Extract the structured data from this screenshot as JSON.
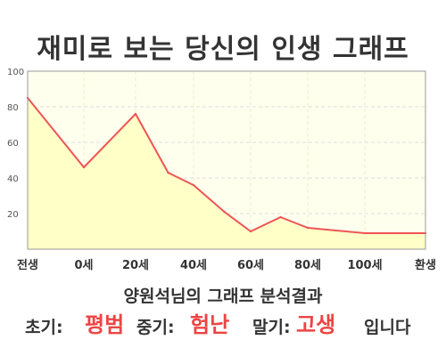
{
  "title": "재미로 보는 당신의 인생 그래프",
  "summary": "양원석님의 그래프 분석결과",
  "result": {
    "early_label": "초기:",
    "early_value": "평범",
    "middle_label": "중기:",
    "middle_value": "험난",
    "late_label": "말기:",
    "late_value": "고생",
    "ending": "입니다"
  },
  "colors": {
    "line": "#ee5555",
    "fill": "#ffffc8",
    "plot_background": "#ffffee",
    "highlight_text": "#ee4444"
  },
  "chart_data": {
    "type": "area",
    "x_tick_labels": [
      "전생",
      "0세",
      "20세",
      "40세",
      "60세",
      "80세",
      "100세",
      "환생"
    ],
    "y_tick_labels": [
      "20",
      "40",
      "60",
      "80",
      "100"
    ],
    "ylim": [
      0,
      100
    ],
    "grid": true,
    "series": [
      {
        "values": [
          {
            "x": "전생",
            "y": 85
          },
          {
            "x": "0세",
            "y": 46
          },
          {
            "x": "20세",
            "y": 76
          },
          {
            "x": "30세",
            "y": 43
          },
          {
            "x": "40세",
            "y": 36
          },
          {
            "x": "50세",
            "y": 21
          },
          {
            "x": "60세",
            "y": 10
          },
          {
            "x": "70세",
            "y": 18
          },
          {
            "x": "80세",
            "y": 12
          },
          {
            "x": "100세",
            "y": 9
          },
          {
            "x": "환생",
            "y": 9
          }
        ]
      }
    ]
  }
}
